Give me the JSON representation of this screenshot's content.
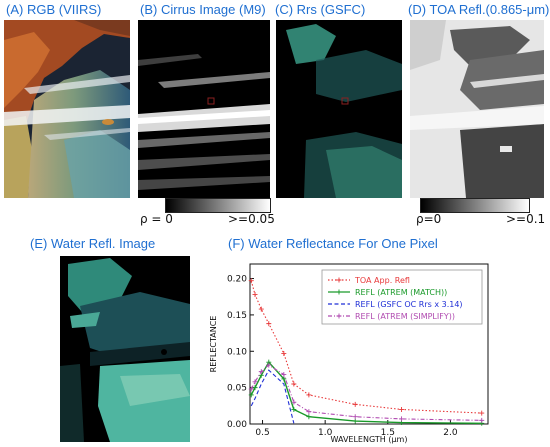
{
  "panels": {
    "a": {
      "label": "(A)",
      "title": "RGB (VIIRS)"
    },
    "b": {
      "label": "(B)",
      "title": "Cirrus Image (M9)"
    },
    "c": {
      "label": "(C)",
      "title": "Rrs (GSFC)"
    },
    "d": {
      "label": "(D)",
      "title": "TOA Refl.(0.865-μm)"
    },
    "e": {
      "label": "(E)",
      "title": "Water Refl. Image"
    },
    "f": {
      "label": "(F)",
      "title": "Water Reflectance For One Pixel"
    }
  },
  "scales": {
    "b": {
      "min": "ρ = 0",
      "max": ">=0.05"
    },
    "d": {
      "min": "ρ=0",
      "max": ">=0.1"
    }
  },
  "colors": {
    "label": "#1f6fd1",
    "toa": "#e8393a",
    "atrem_match": "#1a9a2a",
    "gsfc": "#1f2fd6",
    "atrem_simplify": "#b04ab0"
  },
  "chart_data": {
    "type": "line",
    "title": "Water Reflectance For One Pixel",
    "xlabel": "WAVELENGTH (μm)",
    "ylabel": "REFLECTANCE",
    "xlim": [
      0.4,
      2.3
    ],
    "ylim": [
      0,
      0.22
    ],
    "xticks": [
      0.5,
      1.0,
      1.5,
      2.0
    ],
    "xtick_labels": [
      "0.5",
      "1.0",
      "1.5",
      "2.0"
    ],
    "yticks": [
      0.0,
      0.05,
      0.1,
      0.15,
      0.2
    ],
    "ytick_labels": [
      "0.00",
      "0.05",
      "0.10",
      "0.15",
      "0.20"
    ],
    "legend_position": "top-right",
    "series": [
      {
        "name": "TOA App. Refl",
        "style": "dotted",
        "marker": "plus",
        "x": [
          0.41,
          0.44,
          0.49,
          0.55,
          0.67,
          0.75,
          0.87,
          1.24,
          1.61,
          2.25
        ],
        "y": [
          0.197,
          0.178,
          0.158,
          0.138,
          0.097,
          0.055,
          0.04,
          0.027,
          0.02,
          0.015
        ]
      },
      {
        "name": "REFL (ATREM (MATCH))",
        "style": "solid",
        "marker": "plus",
        "x": [
          0.41,
          0.44,
          0.49,
          0.55,
          0.67,
          0.75,
          0.87,
          1.24,
          1.61,
          2.25
        ],
        "y": [
          0.04,
          0.05,
          0.067,
          0.085,
          0.062,
          0.02,
          0.01,
          0.004,
          0.002,
          0.001
        ]
      },
      {
        "name": "REFL (GSFC OC Rrs x 3.14)",
        "style": "dashed",
        "marker": "none",
        "x": [
          0.41,
          0.44,
          0.49,
          0.55,
          0.67,
          0.75
        ],
        "y": [
          0.025,
          0.035,
          0.055,
          0.074,
          0.055,
          0.001
        ]
      },
      {
        "name": "REFL (ATREM (SIMPLIFY))",
        "style": "dashdot",
        "marker": "plus",
        "x": [
          0.41,
          0.44,
          0.49,
          0.55,
          0.67,
          0.75,
          0.87,
          1.24,
          1.61,
          2.25
        ],
        "y": [
          0.048,
          0.058,
          0.072,
          0.081,
          0.068,
          0.03,
          0.017,
          0.01,
          0.007,
          0.005
        ]
      }
    ]
  }
}
